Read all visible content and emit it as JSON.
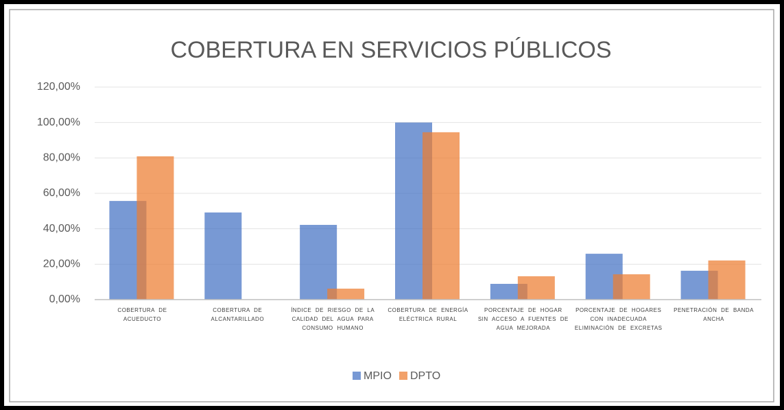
{
  "chart_data": {
    "type": "bar",
    "title": "COBERTURA EN SERVICIOS PÚBLICOS",
    "categories": [
      "COBERTURA DE ACUEDUCTO",
      "COBERTURA DE ALCANTARILLADO",
      "ÍNDICE DE RIESGO DE LA CALIDAD DEL AGUA PARA CONSUMO HUMANO",
      "COBERTURA DE ENERGÍA ELÉCTRICA RURAL",
      "PORCENTAJE DE HOGAR SIN ACCESO A FUENTES DE AGUA MEJORADA",
      "PORCENTAJE DE HOGARES CON INADECUADA ELIMINACIÓN DE EXCRETAS",
      "PENETRACIÓN DE BANDA ANCHA"
    ],
    "series": [
      {
        "name": "MPIO",
        "color": "#4472c4",
        "values": [
          55.7,
          49.2,
          42.2,
          100,
          8.9,
          25.9,
          16.3
        ]
      },
      {
        "name": "DPTO",
        "color": "#ed7d31",
        "values": [
          80.9,
          0,
          6.2,
          94.5,
          13.2,
          14.3,
          22.1
        ]
      }
    ],
    "ylim": [
      0,
      120
    ],
    "yticks": [
      {
        "value": 0,
        "label": "0,00%"
      },
      {
        "value": 20,
        "label": "20,00%"
      },
      {
        "value": 40,
        "label": "40,00%"
      },
      {
        "value": 60,
        "label": "60,00%"
      },
      {
        "value": 80,
        "label": "80,00%"
      },
      {
        "value": 100,
        "label": "100,00%"
      },
      {
        "value": 120,
        "label": "120,00%"
      }
    ],
    "grid": true,
    "legend": "bottom"
  }
}
